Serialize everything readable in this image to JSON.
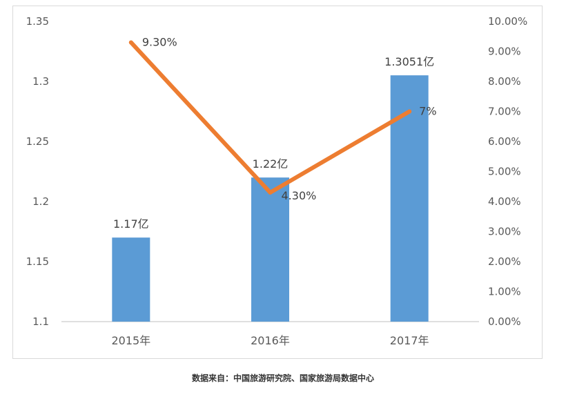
{
  "chart_data": {
    "type": "bar+line",
    "categories": [
      "2015年",
      "2016年",
      "2017年"
    ],
    "series": [
      {
        "kind": "bar",
        "axis": "left",
        "values": [
          1.17,
          1.22,
          1.3051
        ],
        "labels": [
          "1.17亿",
          "1.22亿",
          "1.3051亿"
        ],
        "color": "#5B9BD5"
      },
      {
        "kind": "line",
        "axis": "right",
        "values": [
          9.3,
          4.3,
          7.0
        ],
        "labels": [
          "9.30%",
          "4.30%",
          "7%"
        ],
        "color": "#ED7D31"
      }
    ],
    "y_left": {
      "min": 1.1,
      "max": 1.35,
      "ticks": [
        "1.1",
        "1.15",
        "1.2",
        "1.25",
        "1.3",
        "1.35"
      ]
    },
    "y_right": {
      "min": 0,
      "max": 10,
      "ticks": [
        "0.00%",
        "1.00%",
        "2.00%",
        "3.00%",
        "4.00%",
        "5.00%",
        "6.00%",
        "7.00%",
        "8.00%",
        "9.00%",
        "10.00%"
      ]
    },
    "grid": false
  },
  "source_note": "数据来自：中国旅游研究院、国家旅游局数据中心"
}
